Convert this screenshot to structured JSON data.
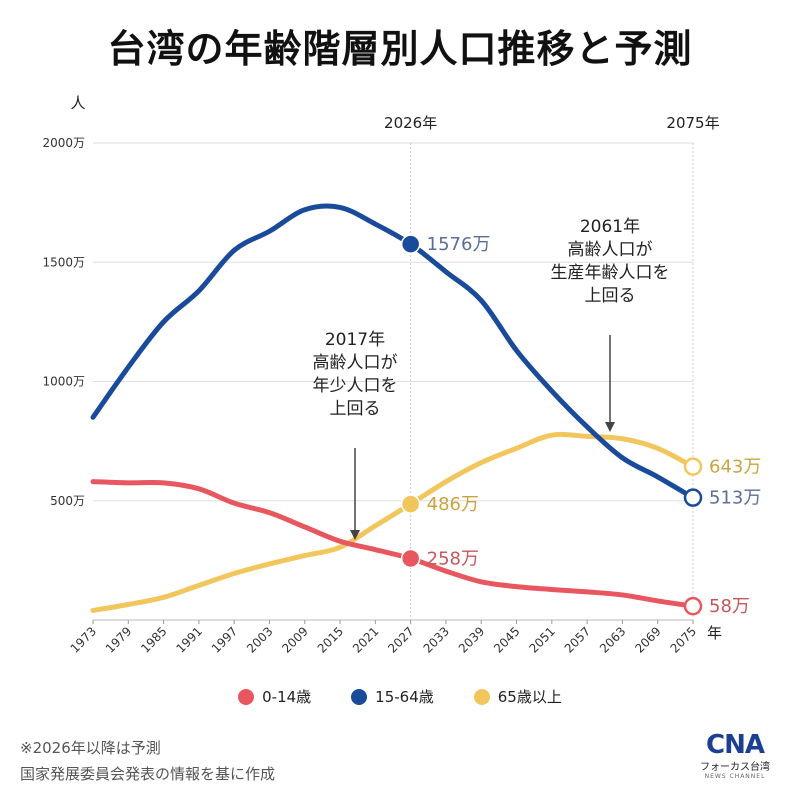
{
  "title": "台湾の年齢階層別人口推移と予測",
  "chart_data": {
    "type": "line",
    "y_unit_label": "人",
    "x_unit_label": "年",
    "ylim": [
      0,
      2000
    ],
    "xlim": [
      1973,
      2075
    ],
    "y_ticks": [
      {
        "value": 500,
        "label": "500万"
      },
      {
        "value": 1000,
        "label": "1000万"
      },
      {
        "value": 1500,
        "label": "1500万"
      },
      {
        "value": 2000,
        "label": "2000万"
      }
    ],
    "x_ticks": [
      "1973",
      "1979",
      "1985",
      "1991",
      "1997",
      "2003",
      "2009",
      "2015",
      "2021",
      "2027",
      "2033",
      "2039",
      "2045",
      "2051",
      "2057",
      "2063",
      "2069",
      "2075"
    ],
    "vertical_markers": [
      {
        "x": 2027,
        "label": "2026年"
      },
      {
        "x": 2075,
        "label": "2075年"
      }
    ],
    "series": [
      {
        "name": "0-14歳",
        "color": "#e8565f",
        "x": [
          1973,
          1979,
          1985,
          1991,
          1997,
          2003,
          2009,
          2015,
          2021,
          2027,
          2033,
          2039,
          2045,
          2051,
          2057,
          2063,
          2069,
          2075
        ],
        "values": [
          580,
          575,
          575,
          550,
          490,
          450,
          390,
          330,
          295,
          258,
          205,
          160,
          140,
          128,
          118,
          105,
          80,
          58
        ]
      },
      {
        "name": "15-64歳",
        "color": "#1a4b9b",
        "x": [
          1973,
          1979,
          1985,
          1991,
          1997,
          2003,
          2009,
          2015,
          2021,
          2027,
          2033,
          2039,
          2045,
          2051,
          2057,
          2063,
          2069,
          2075
        ],
        "values": [
          850,
          1060,
          1250,
          1380,
          1550,
          1630,
          1720,
          1730,
          1660,
          1576,
          1460,
          1340,
          1130,
          960,
          810,
          680,
          600,
          513
        ]
      },
      {
        "name": "65歳以上",
        "color": "#f1c75d",
        "x": [
          1973,
          1979,
          1985,
          1991,
          1997,
          2003,
          2009,
          2015,
          2021,
          2027,
          2033,
          2039,
          2045,
          2051,
          2057,
          2063,
          2069,
          2075
        ],
        "values": [
          40,
          65,
          95,
          145,
          195,
          235,
          270,
          305,
          395,
          486,
          580,
          660,
          720,
          775,
          770,
          760,
          720,
          643
        ]
      }
    ],
    "endpoint_labels": [
      {
        "series": 1,
        "x": 2027,
        "value": 1576,
        "label": "1576万",
        "hollow": false
      },
      {
        "series": 2,
        "x": 2027,
        "value": 486,
        "label": "486万",
        "hollow": false
      },
      {
        "series": 0,
        "x": 2027,
        "value": 258,
        "label": "258万",
        "hollow": false
      },
      {
        "series": 2,
        "x": 2075,
        "value": 643,
        "label": "643万",
        "hollow": true
      },
      {
        "series": 1,
        "x": 2075,
        "value": 513,
        "label": "513万",
        "hollow": true
      },
      {
        "series": 0,
        "x": 2075,
        "value": 58,
        "label": "58万",
        "hollow": true
      }
    ],
    "annotations": [
      {
        "lines": [
          "2017年",
          "高齢人口が",
          "年少人口を",
          "上回る"
        ],
        "x": 2017,
        "value": 320
      },
      {
        "lines": [
          "2061年",
          "高齢人口が",
          "生産年齢人口を",
          "上回る"
        ],
        "x": 2061,
        "value": 770
      }
    ]
  },
  "legend": [
    {
      "label": "0-14歳",
      "color": "#e8565f"
    },
    {
      "label": "15-64歳",
      "color": "#1a4b9b"
    },
    {
      "label": "65歳以上",
      "color": "#f1c75d"
    }
  ],
  "footnotes": {
    "note1": "※2026年以降は予測",
    "note2": "国家発展委員会発表の情報を基に作成"
  },
  "logo": {
    "mark": "CNA",
    "name": "フォーカス台湾",
    "sub": "NEWS CHANNEL"
  }
}
